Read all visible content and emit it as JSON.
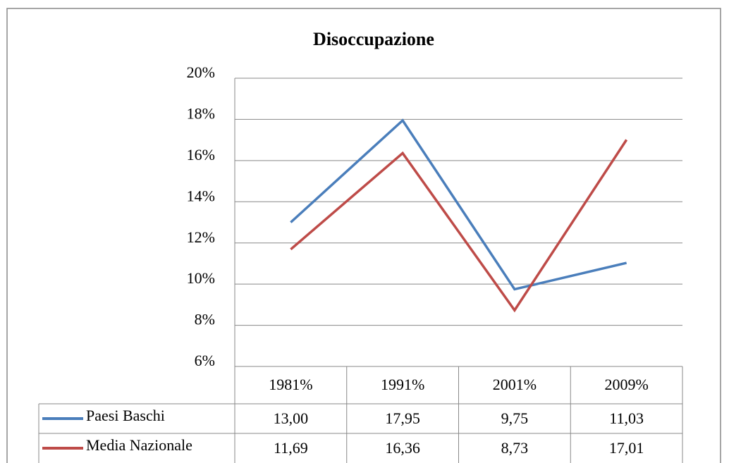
{
  "chart_data": {
    "type": "line",
    "title": "Disoccupazione",
    "categories": [
      "1981%",
      "1991%",
      "2001%",
      "2009%"
    ],
    "series": [
      {
        "name": "Paesi Baschi",
        "color": "#4a7ebb",
        "values": [
          13.0,
          17.95,
          9.75,
          11.03
        ],
        "value_labels": [
          "13,00",
          "17,95",
          "9,75",
          "11,03"
        ]
      },
      {
        "name": "Media Nazionale",
        "color": "#be4b48",
        "values": [
          11.69,
          16.36,
          8.73,
          17.01
        ],
        "value_labels": [
          "11,69",
          "16,36",
          "8,73",
          "17,01"
        ]
      }
    ],
    "ylim": [
      6,
      20
    ],
    "yticks": [
      {
        "value": 6,
        "label": "6%"
      },
      {
        "value": 8,
        "label": "8%"
      },
      {
        "value": 10,
        "label": "10%"
      },
      {
        "value": 12,
        "label": "12%"
      },
      {
        "value": 14,
        "label": "14%"
      },
      {
        "value": 16,
        "label": "16%"
      },
      {
        "value": 18,
        "label": "18%"
      },
      {
        "value": 20,
        "label": "20%"
      }
    ],
    "grid": true
  }
}
